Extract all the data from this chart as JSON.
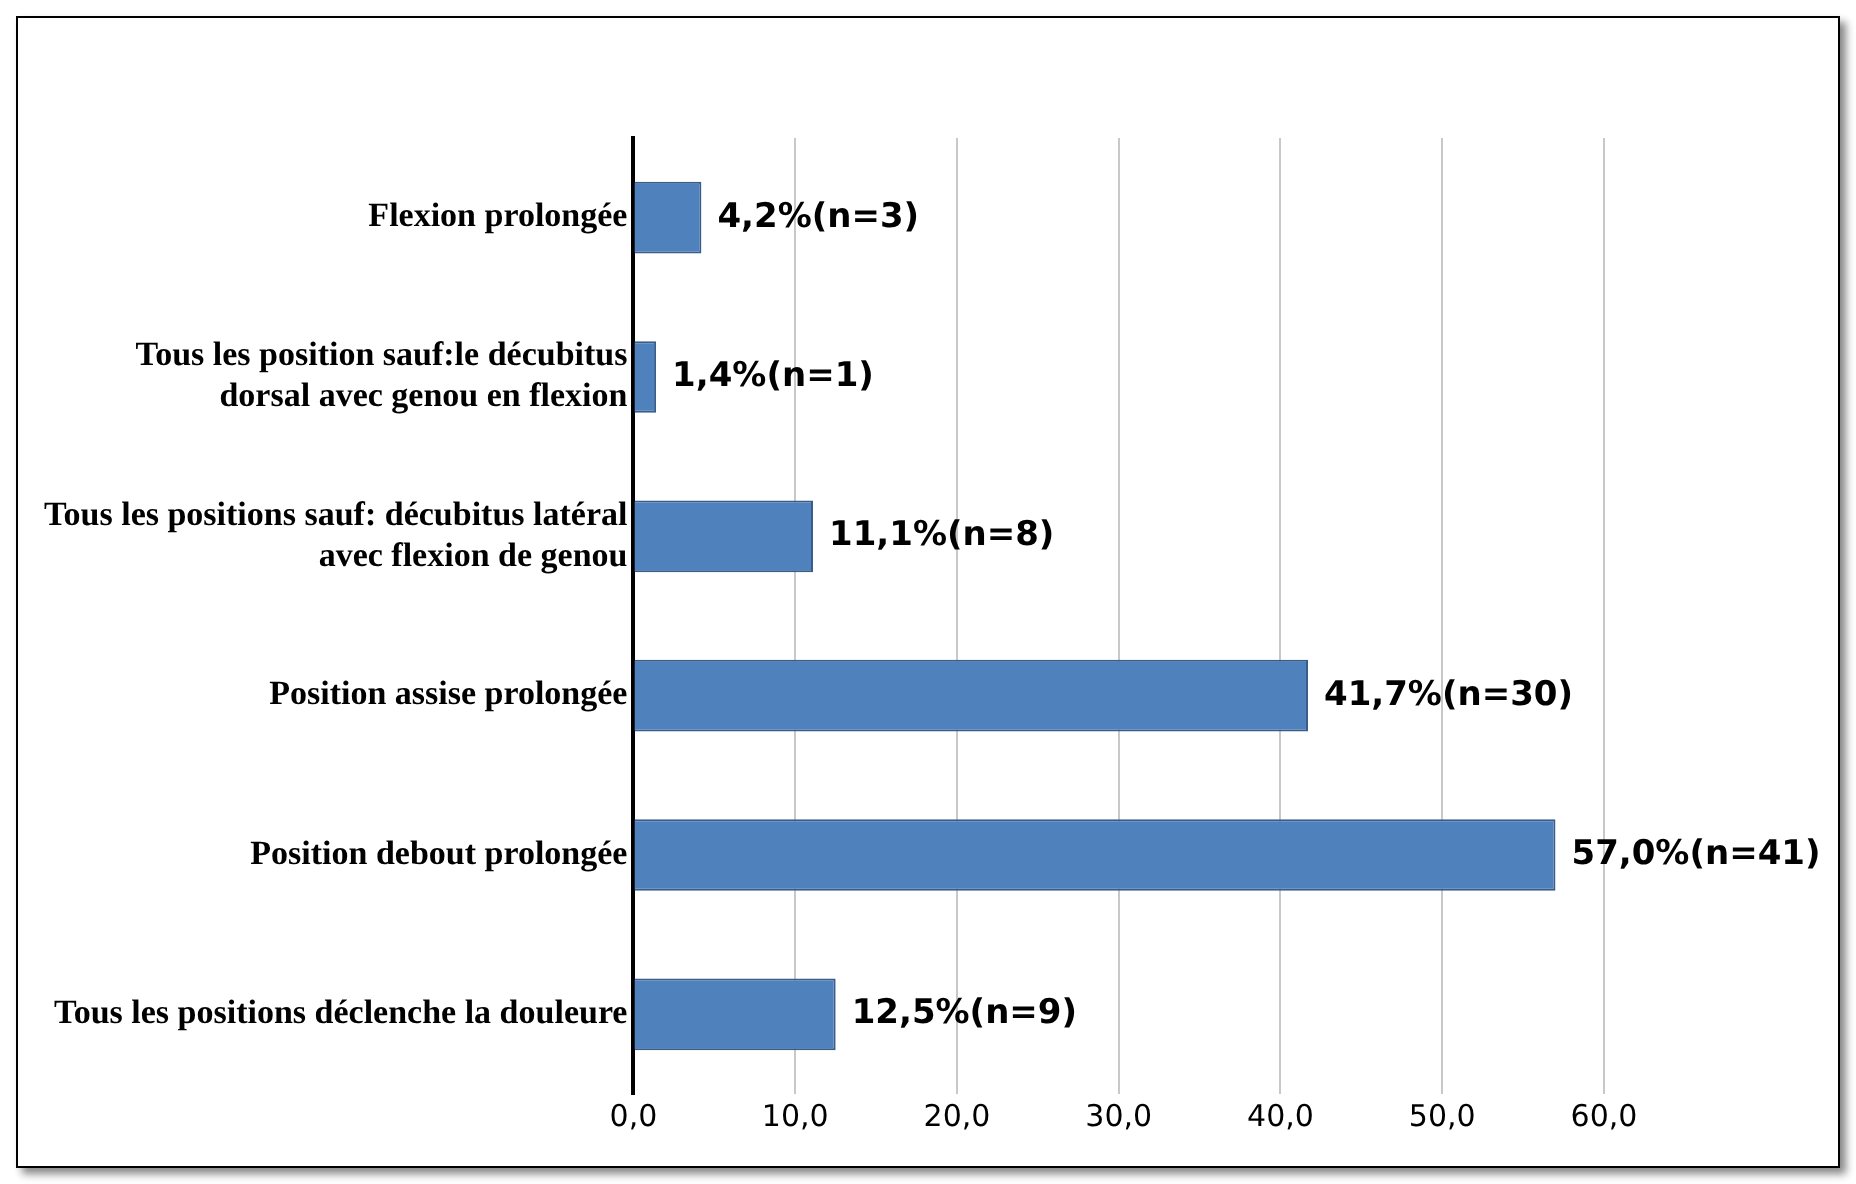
{
  "chart_data": {
    "type": "bar",
    "orientation": "horizontal",
    "categories": [
      "Flexion prolongée",
      "Tous les position sauf:le décubitus\ndorsal avec genou en flexion",
      "Tous les positions sauf: décubitus latéral\navec flexion de genou",
      "Position assise prolongée",
      "Position debout prolongée",
      "Tous les positions déclenche la douleure"
    ],
    "values": [
      4.2,
      1.4,
      11.1,
      41.7,
      57.0,
      12.5
    ],
    "value_labels": [
      "4,2%(n=3)",
      "1,4%(n=1)",
      "11,1%(n=8)",
      "41,7%(n=30)",
      "57,0%(n=41)",
      "12,5%(n=9)"
    ],
    "color": "#4f81bd",
    "xlim": [
      0,
      60
    ],
    "xticks": [
      {
        "value": 0,
        "label": "0,0"
      },
      {
        "value": 10,
        "label": "10,0"
      },
      {
        "value": 20,
        "label": "20,0"
      },
      {
        "value": 30,
        "label": "30,0"
      },
      {
        "value": 40,
        "label": "40,0"
      },
      {
        "value": 50,
        "label": "50,0"
      },
      {
        "value": 60,
        "label": "60,0"
      }
    ],
    "grid": "x",
    "legend": false
  }
}
